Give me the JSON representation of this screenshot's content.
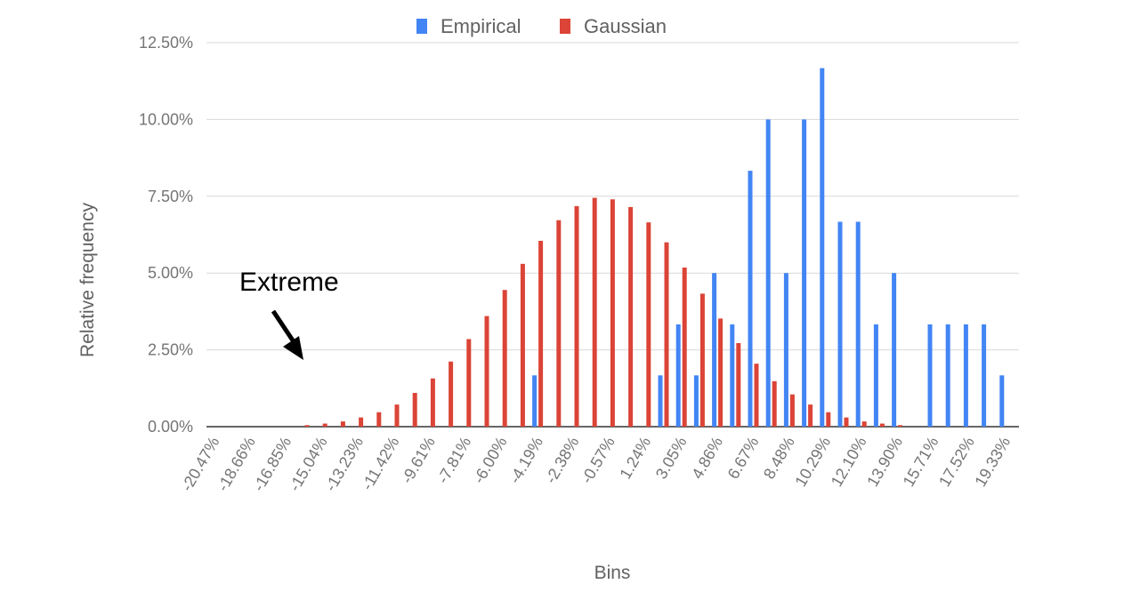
{
  "chart_data": {
    "type": "bar",
    "ylabel": "Relative frequency",
    "xlabel": "Bins",
    "ylim": [
      0,
      12.5
    ],
    "yticks": [
      "0.00%",
      "2.50%",
      "5.00%",
      "7.50%",
      "10.00%",
      "12.50%"
    ],
    "ytick_values": [
      0,
      2.5,
      5,
      7.5,
      10,
      12.5
    ],
    "grid": true,
    "legend_position": "top",
    "categories": [
      "-20.47%",
      "-19.56%",
      "-18.66%",
      "-17.75%",
      "-16.85%",
      "-15.94%",
      "-15.04%",
      "-14.13%",
      "-13.23%",
      "-12.32%",
      "-11.42%",
      "-10.51%",
      "-9.61%",
      "-8.71%",
      "-7.81%",
      "-6.90%",
      "-6.00%",
      "-5.09%",
      "-4.19%",
      "-3.28%",
      "-2.38%",
      "-1.47%",
      "-0.57%",
      "0.34%",
      "1.24%",
      "2.15%",
      "3.05%",
      "3.96%",
      "4.86%",
      "5.76%",
      "6.67%",
      "7.57%",
      "8.48%",
      "9.38%",
      "10.29%",
      "11.19%",
      "12.10%",
      "13.00%",
      "13.90%",
      "14.81%",
      "15.71%",
      "16.62%",
      "17.52%",
      "18.43%",
      "19.33%"
    ],
    "tick_labels": [
      "-20.47%",
      "-18.66%",
      "-16.85%",
      "-15.04%",
      "-13.23%",
      "-11.42%",
      "-9.61%",
      "-7.81%",
      "-6.00%",
      "-4.19%",
      "-2.38%",
      "-0.57%",
      "1.24%",
      "3.05%",
      "4.86%",
      "6.67%",
      "8.48%",
      "10.29%",
      "12.10%",
      "13.90%",
      "15.71%",
      "17.52%",
      "19.33%"
    ],
    "series": [
      {
        "name": "Empirical",
        "color": "#4285f4",
        "values": [
          0,
          0,
          0,
          0,
          0,
          0,
          0,
          0,
          0,
          0,
          0,
          0,
          0,
          0,
          0,
          0,
          0,
          0,
          1.67,
          0,
          0,
          0,
          0,
          0,
          0,
          1.67,
          3.33,
          1.67,
          5,
          3.33,
          8.33,
          10,
          5,
          10,
          11.67,
          6.67,
          6.67,
          3.33,
          5,
          0,
          3.33,
          3.33,
          3.33,
          3.33,
          1.67
        ]
      },
      {
        "name": "Gaussian",
        "color": "#db4437",
        "values": [
          0,
          0,
          0,
          0,
          0,
          0.05,
          0.1,
          0.17,
          0.3,
          0.47,
          0.72,
          1.1,
          1.57,
          2.12,
          2.85,
          3.6,
          4.45,
          5.3,
          6.05,
          6.72,
          7.18,
          7.45,
          7.4,
          7.15,
          6.65,
          6,
          5.18,
          4.33,
          3.52,
          2.72,
          2.05,
          1.48,
          1.05,
          0.72,
          0.47,
          0.3,
          0.17,
          0.1,
          0.05,
          0,
          0,
          0,
          0,
          0,
          0
        ]
      }
    ],
    "annotations": [
      {
        "text": "Extreme"
      }
    ]
  }
}
